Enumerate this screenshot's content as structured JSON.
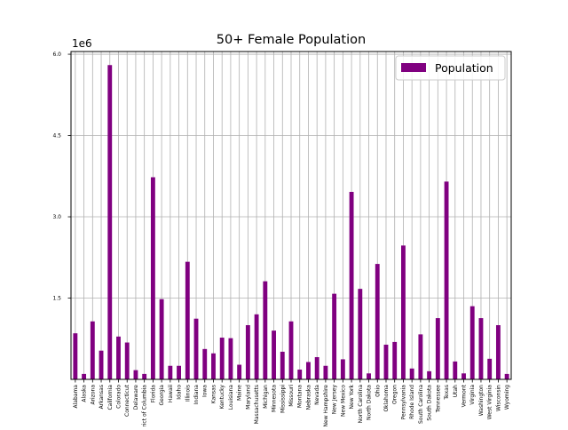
{
  "chart_data": {
    "type": "bar",
    "title": "50+ Female Population",
    "xlabel": "",
    "ylabel": "",
    "scale_label": "1e6",
    "ylim": [
      0,
      6.05
    ],
    "yticks": [
      1.5,
      3.0,
      4.5,
      6.0
    ],
    "ytick_labels": [
      "1.5",
      "3.0",
      "4.5",
      "6.0"
    ],
    "grid": true,
    "legend_position": "top-right",
    "bar_color": "#800080",
    "series": [
      {
        "name": "Population",
        "values": [
          0.85,
          0.1,
          1.07,
          0.53,
          5.8,
          0.79,
          0.68,
          0.17,
          0.1,
          3.73,
          1.48,
          0.25,
          0.25,
          2.17,
          1.12,
          0.56,
          0.48,
          0.77,
          0.76,
          0.27,
          1.0,
          1.2,
          1.81,
          0.9,
          0.51,
          1.07,
          0.18,
          0.32,
          0.41,
          0.25,
          1.58,
          0.37,
          3.46,
          1.67,
          0.11,
          2.13,
          0.64,
          0.69,
          2.47,
          0.2,
          0.83,
          0.15,
          1.13,
          3.65,
          0.33,
          0.11,
          1.35,
          1.13,
          0.38,
          1.0,
          0.1
        ]
      }
    ],
    "categories": [
      "Alabama",
      "Alaska",
      "Arizona",
      "Arkansas",
      "California",
      "Colorado",
      "Connecticut",
      "Delaware",
      "District of Columbia",
      "Florida",
      "Georgia",
      "Hawaii",
      "Idaho",
      "Illinois",
      "Indiana",
      "Iowa",
      "Kansas",
      "Kentucky",
      "Louisiana",
      "Maine",
      "Maryland",
      "Massachusetts",
      "Michigan",
      "Minnesota",
      "Mississippi",
      "Missouri",
      "Montana",
      "Nebraska",
      "Nevada",
      "New Hampshire",
      "New Jersey",
      "New Mexico",
      "New York",
      "North Carolina",
      "North Dakota",
      "Ohio",
      "Oklahoma",
      "Oregon",
      "Pennsylvania",
      "Rhode Island",
      "South Carolina",
      "South Dakota",
      "Tennessee",
      "Texas",
      "Utah",
      "Vermont",
      "Virginia",
      "Washington",
      "West Virginia",
      "Wisconsin",
      "Wyoming"
    ]
  }
}
